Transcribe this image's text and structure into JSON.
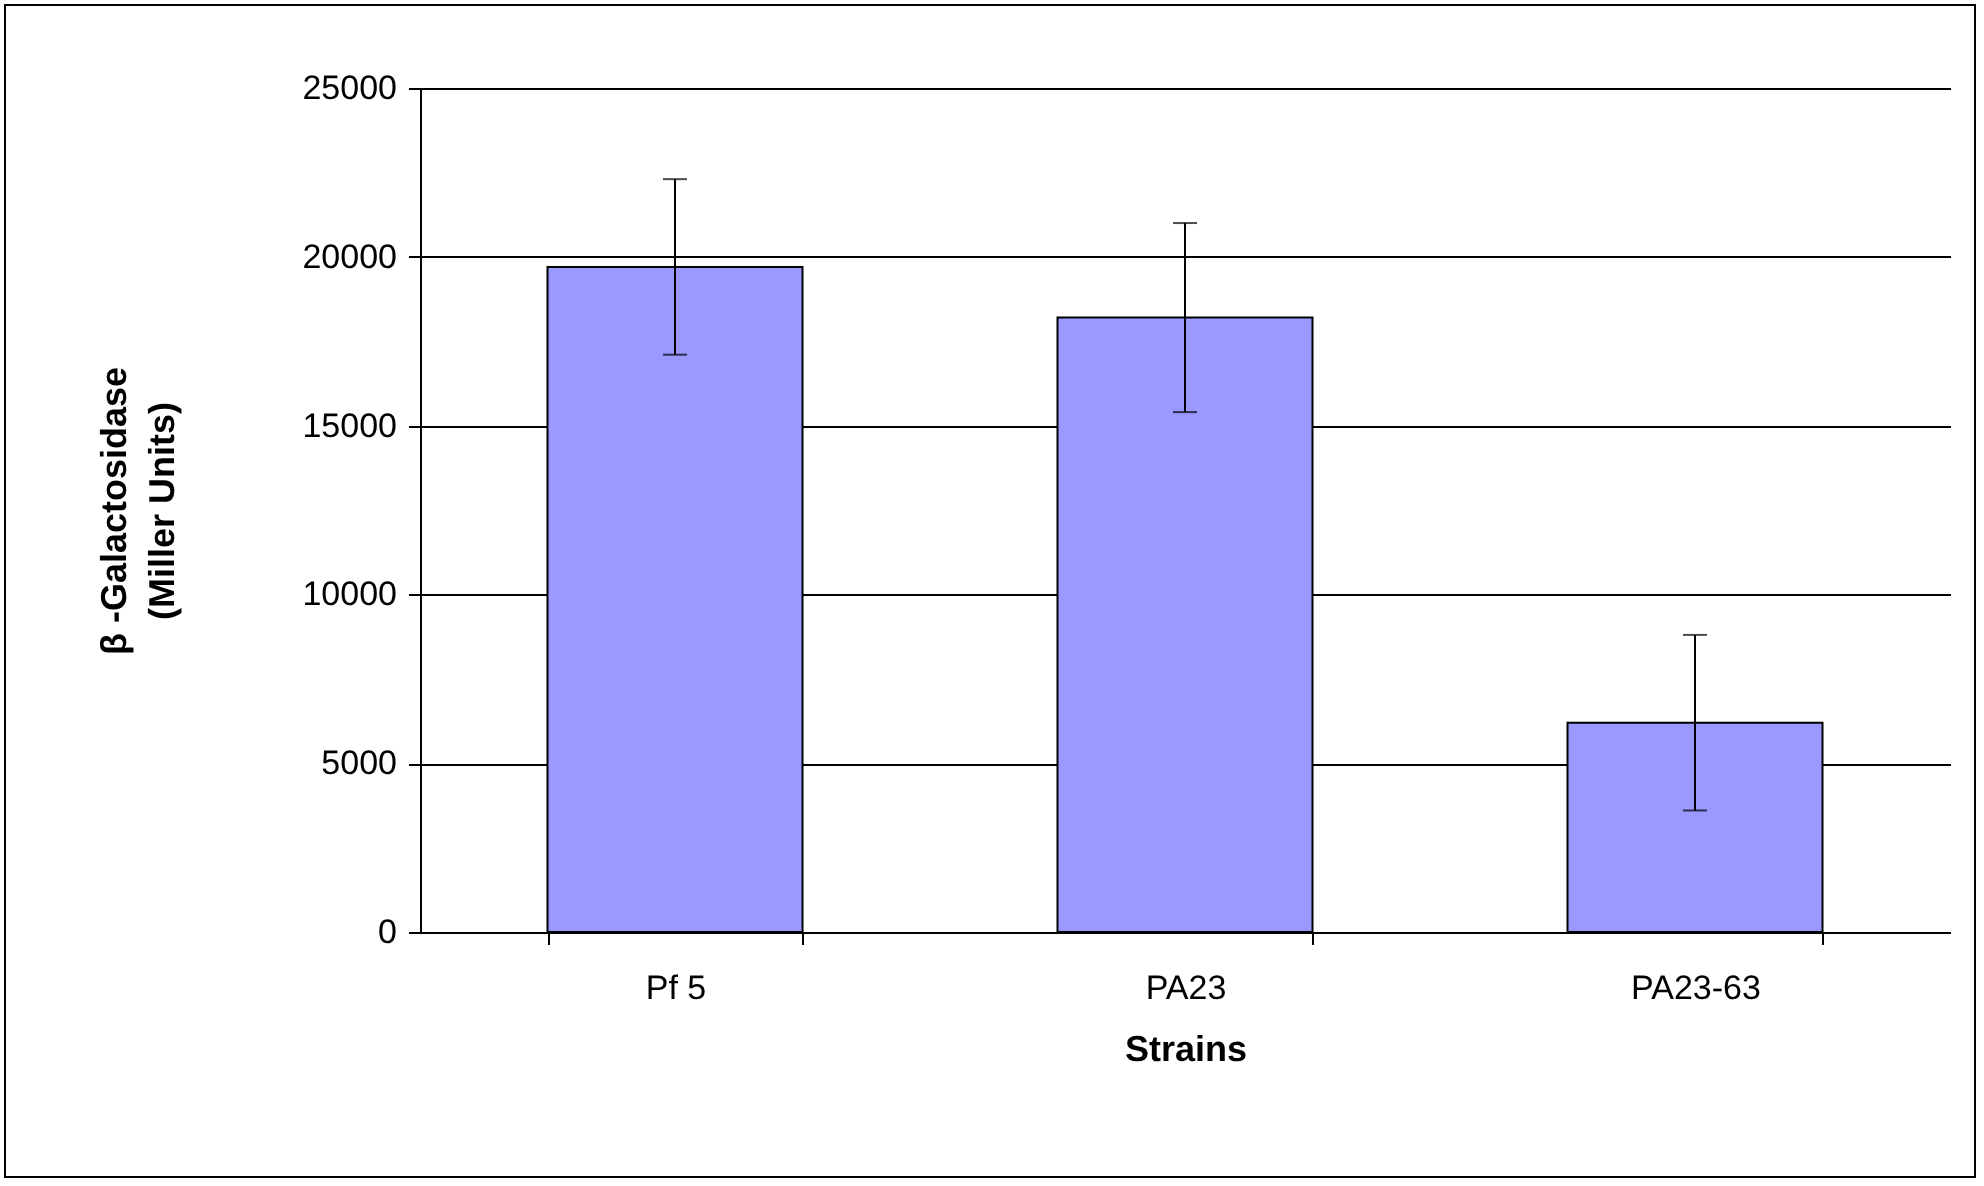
{
  "chart_data": {
    "type": "bar",
    "xlabel": "Strains",
    "ylabel": "β -Galactosidase\n(Miller Units)",
    "categories": [
      "Pf 5",
      "PA23",
      "PA23-63"
    ],
    "values": [
      19700,
      18200,
      6200
    ],
    "errors": [
      2600,
      2800,
      2600
    ],
    "color": "#9999ff",
    "ylim": [
      0,
      25000
    ],
    "yticks": [
      0,
      5000,
      10000,
      15000,
      20000,
      25000
    ],
    "grid": "y"
  }
}
